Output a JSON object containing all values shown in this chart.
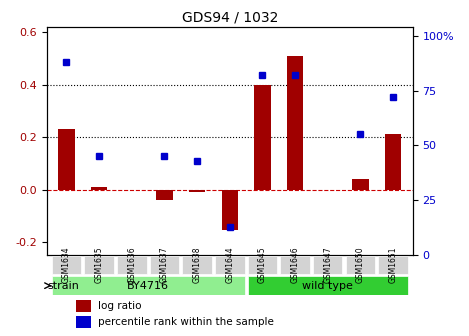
{
  "title": "GDS94 / 1032",
  "samples": [
    "GSM1634",
    "GSM1635",
    "GSM1636",
    "GSM1637",
    "GSM1638",
    "GSM1644",
    "GSM1645",
    "GSM1646",
    "GSM1647",
    "GSM1650",
    "GSM1651"
  ],
  "log_ratio": [
    0.23,
    0.01,
    0.0,
    -0.04,
    -0.01,
    -0.155,
    0.4,
    0.51,
    0.0,
    0.04,
    0.21
  ],
  "percentile": [
    88,
    45,
    null,
    45,
    43,
    13,
    82,
    82,
    null,
    55,
    72
  ],
  "by4716_samples": [
    "GSM1634",
    "GSM1635",
    "GSM1636",
    "GSM1637",
    "GSM1638",
    "GSM1644"
  ],
  "wildtype_samples": [
    "GSM1645",
    "GSM1646",
    "GSM1647",
    "GSM1650",
    "GSM1651"
  ],
  "bar_color": "#a00000",
  "dot_color": "#0000cc",
  "ylim_left": [
    -0.25,
    0.62
  ],
  "ylim_right": [
    0,
    104
  ],
  "yticks_left": [
    -0.2,
    0.0,
    0.2,
    0.4,
    0.6
  ],
  "yticks_right": [
    0,
    25,
    50,
    75,
    100
  ],
  "hlines": [
    0.0,
    0.2,
    0.4
  ],
  "hline_styles": [
    "dashed",
    "dotted",
    "dotted"
  ],
  "hline_colors": [
    "#cc0000",
    "#000000",
    "#000000"
  ],
  "bg_color": "#ffffff",
  "plot_bg_color": "#ffffff",
  "by4716_color": "#90ee90",
  "wildtype_color": "#32cd32",
  "strain_label": "strain",
  "legend_log": "log ratio",
  "legend_pct": "percentile rank within the sample"
}
